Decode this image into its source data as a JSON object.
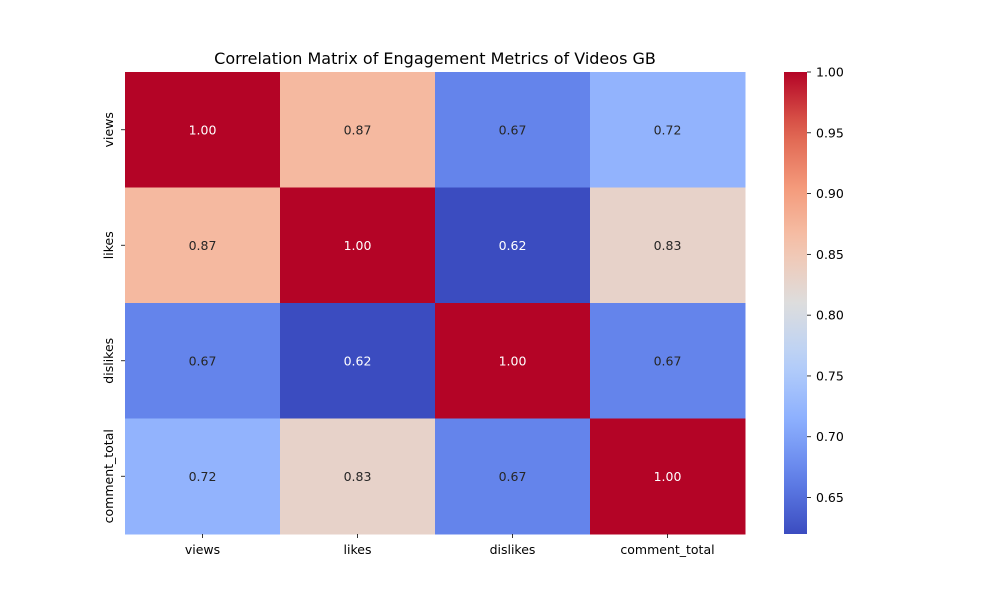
{
  "chart_data": {
    "type": "heatmap",
    "title": "Correlation Matrix of Engagement Metrics of Videos GB",
    "x_labels": [
      "views",
      "likes",
      "dislikes",
      "comment_total"
    ],
    "y_labels": [
      "views",
      "likes",
      "dislikes",
      "comment_total"
    ],
    "values": [
      [
        1.0,
        0.87,
        0.67,
        0.72
      ],
      [
        0.87,
        1.0,
        0.62,
        0.83
      ],
      [
        0.67,
        0.62,
        1.0,
        0.67
      ],
      [
        0.72,
        0.83,
        0.67,
        1.0
      ]
    ],
    "value_format": "2 decimals",
    "colormap": "coolwarm",
    "colorbar": {
      "min": 0.62,
      "max": 1.0,
      "ticks": [
        "0.65",
        "0.70",
        "0.75",
        "0.80",
        "0.85",
        "0.90",
        "0.95",
        "1.00"
      ]
    }
  }
}
